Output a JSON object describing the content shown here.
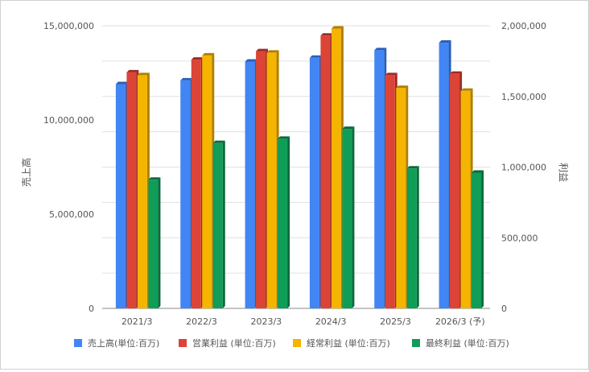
{
  "chart_data": {
    "type": "bar",
    "categories": [
      "2021/3",
      "2022/3",
      "2023/3",
      "2024/3",
      "2025/3",
      "2026/3 (予)"
    ],
    "left_axis": {
      "label": "売上高",
      "ylim": [
        0,
        15000000
      ],
      "ticks": [
        "0",
        "5,000,000",
        "10,000,000",
        "15,000,000"
      ],
      "tick_values": [
        0,
        5000000,
        10000000,
        15000000
      ]
    },
    "right_axis": {
      "label": "利益",
      "ylim": [
        0,
        2000000
      ],
      "ticks": [
        "0",
        "500,000",
        "1,000,000",
        "1,500,000",
        "2,000,000"
      ],
      "tick_values": [
        0,
        500000,
        1000000,
        1500000,
        2000000
      ]
    },
    "series": [
      {
        "name": "売上高(単位:百万)",
        "axis": "left",
        "color": "#4285f4",
        "shade": "#2a5fb8",
        "values": [
          11900000,
          12100000,
          13100000,
          13300000,
          13700000,
          14100000
        ]
      },
      {
        "name": "営業利益 (単位:百万)",
        "axis": "right",
        "color": "#db4437",
        "shade": "#9e2a21",
        "values": [
          1670000,
          1760000,
          1820000,
          1930000,
          1650000,
          1660000
        ]
      },
      {
        "name": "経常利益 (単位:百万)",
        "axis": "right",
        "color": "#f4b400",
        "shade": "#b07f00",
        "values": [
          1650000,
          1790000,
          1810000,
          1980000,
          1560000,
          1540000
        ]
      },
      {
        "name": "最終利益 (単位:百万)",
        "axis": "right",
        "color": "#0f9d58",
        "shade": "#0a6a3b",
        "values": [
          910000,
          1170000,
          1200000,
          1270000,
          990000,
          960000
        ]
      }
    ],
    "legend_position": "bottom",
    "grid": true
  }
}
